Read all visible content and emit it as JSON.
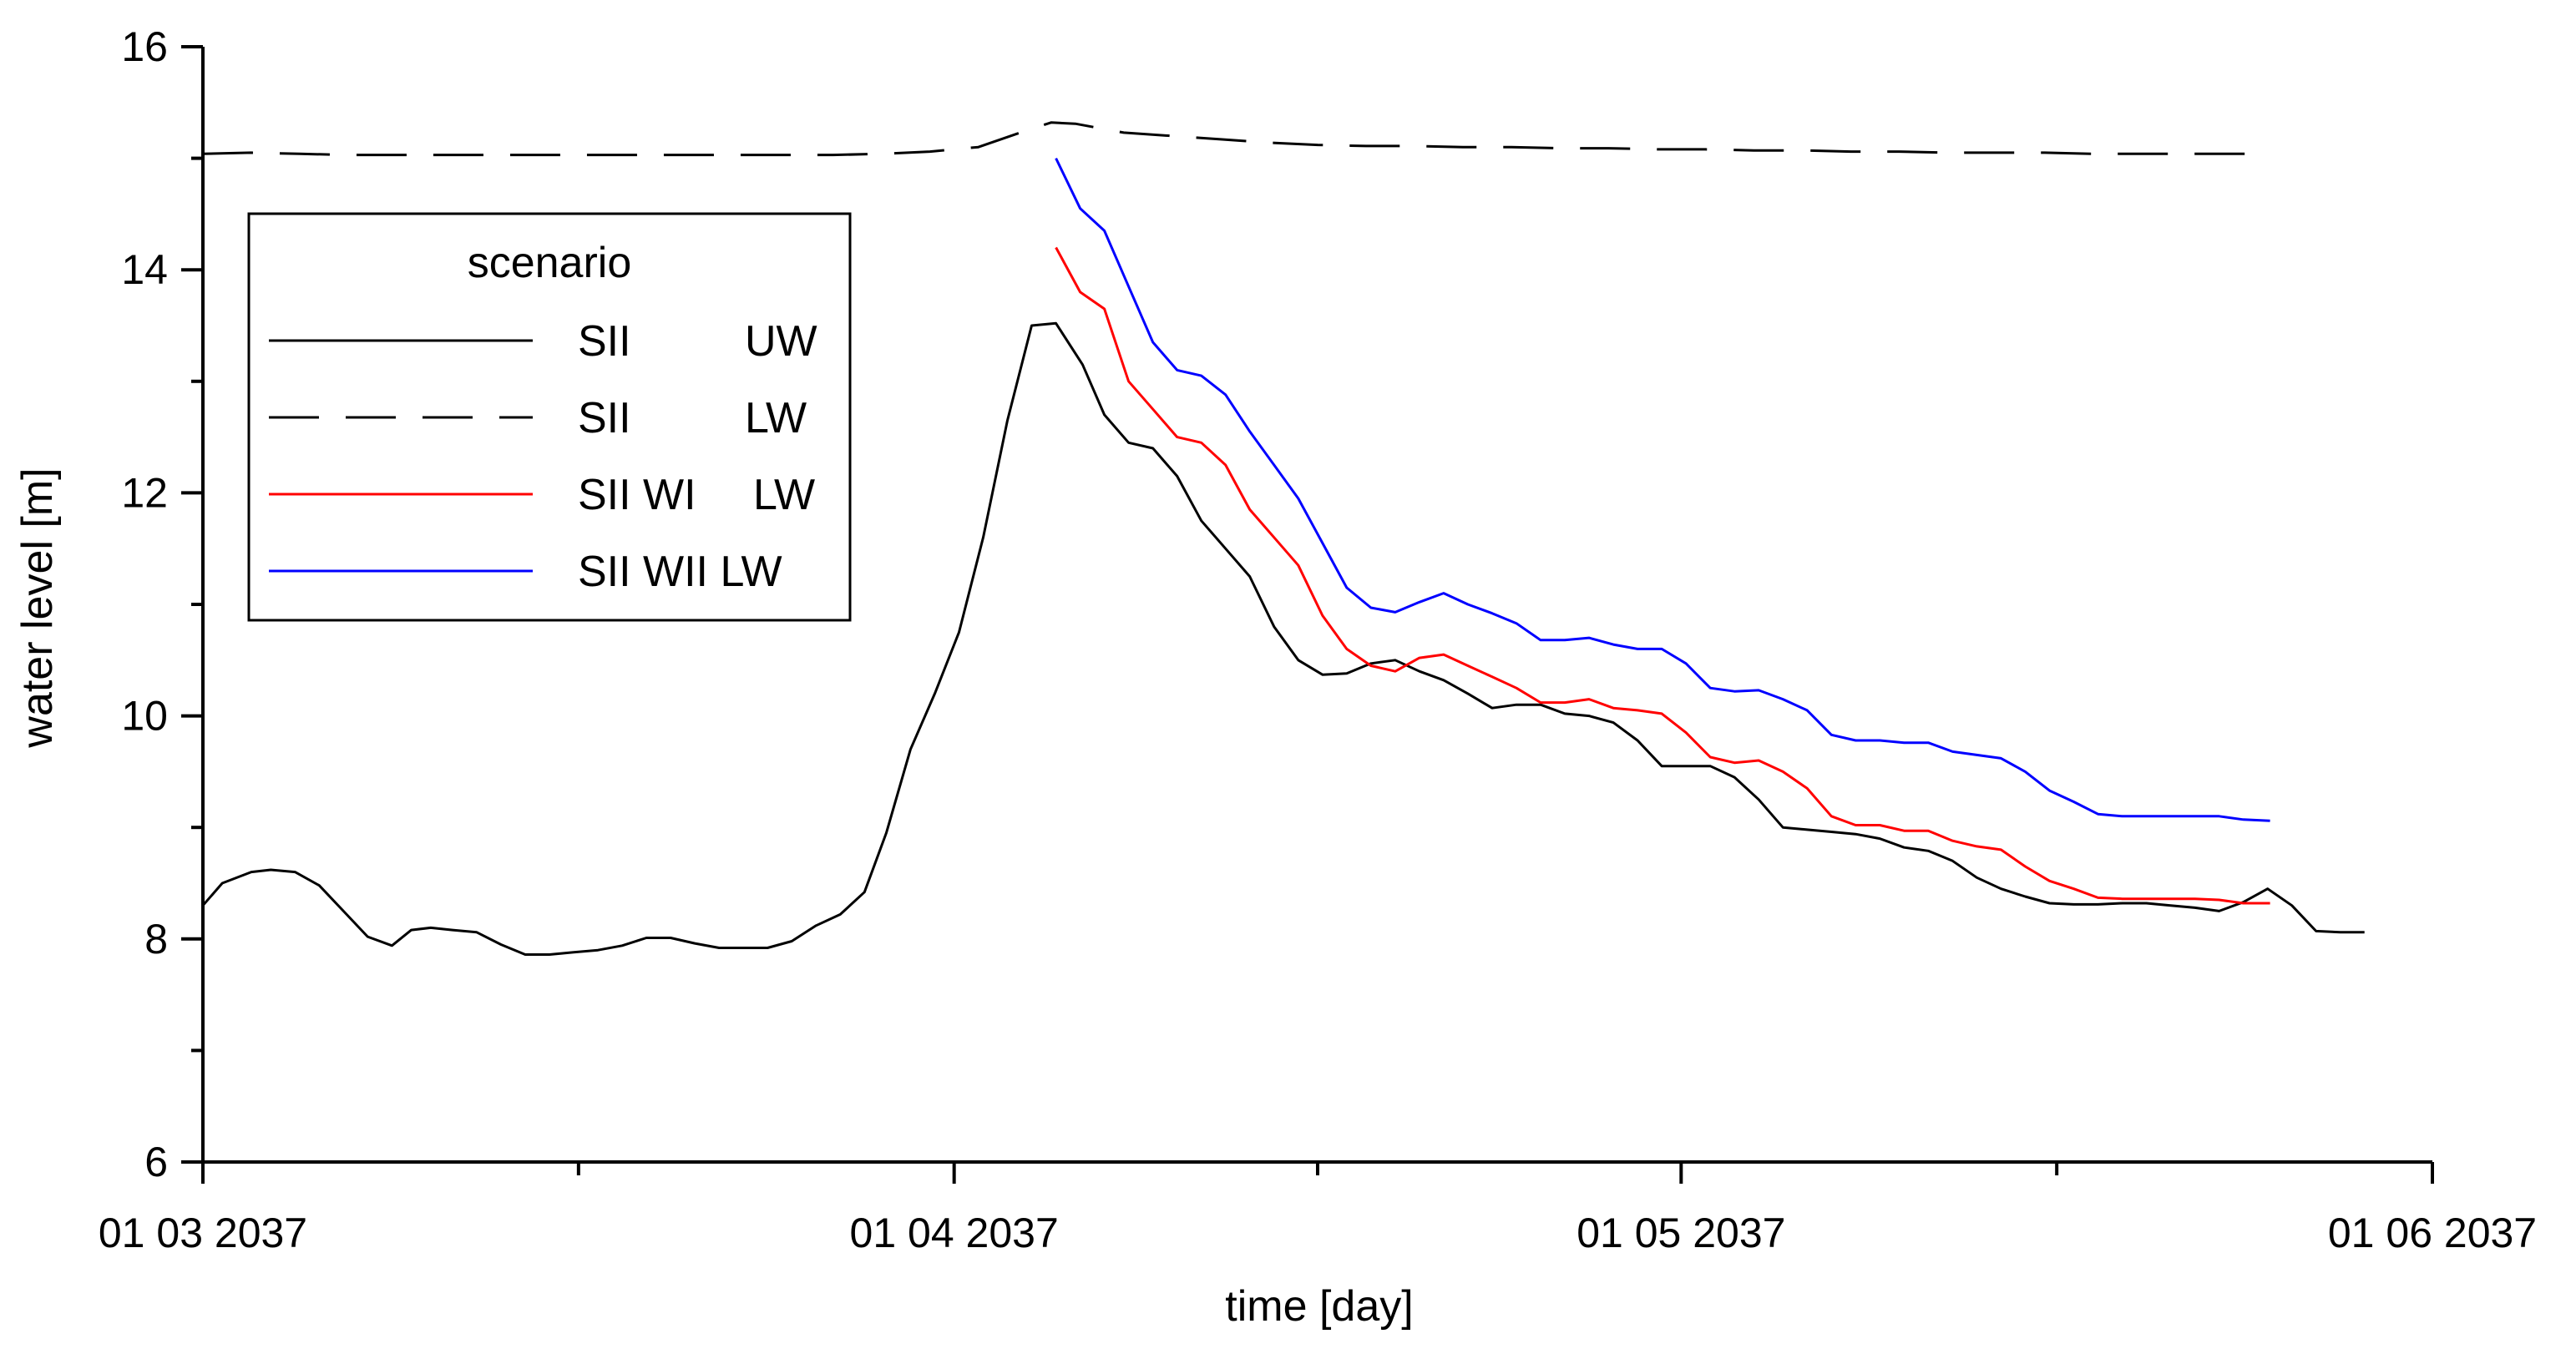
{
  "chart_data": {
    "type": "line",
    "title": "",
    "xlabel": "time [day]",
    "ylabel": "water level [m]",
    "xlim": [
      0,
      92
    ],
    "ylim": [
      6,
      16
    ],
    "y_ticks": [
      6,
      8,
      10,
      12,
      14,
      16
    ],
    "x_ticks": [
      {
        "day": 0,
        "label": "01 03 2037"
      },
      {
        "day": 31,
        "label": "01 04 2037"
      },
      {
        "day": 61,
        "label": "01 05 2037"
      },
      {
        "day": 92,
        "label": "01 06 2037"
      }
    ],
    "x_minor_ticks": [
      15.5,
      46,
      76.5
    ],
    "y_minor_ticks": [
      7,
      9,
      11,
      13,
      15
    ],
    "legend": {
      "title": "scenario",
      "position": "upper-left",
      "entries": [
        {
          "series": 0,
          "name": "SII",
          "tag": "UW"
        },
        {
          "series": 1,
          "name": "SII",
          "tag": "LW"
        },
        {
          "series": 2,
          "name": "SII WI",
          "tag": "LW"
        },
        {
          "series": 3,
          "name": "SII WII LW",
          "tag": ""
        }
      ]
    },
    "series": [
      {
        "name": "SII UW",
        "color": "#000000",
        "dash": "solid",
        "x": [
          0,
          0.8,
          2,
          2.8,
          3.8,
          4.8,
          5.8,
          6.8,
          7.8,
          8.6,
          9.4,
          10.3,
          11.3,
          12.3,
          13.3,
          14.3,
          15.3,
          16.3,
          17.3,
          18.3,
          19.3,
          20.3,
          21.3,
          22.3,
          23.3,
          24.3,
          25.3,
          26.3,
          27.3,
          28.2,
          29.2,
          30.2,
          31.2,
          32.2,
          33.2,
          34.2,
          35.2,
          36.3,
          37.2,
          38.2,
          39.2,
          40.2,
          41.2,
          42.2,
          43.2,
          44.2,
          45.2,
          46.2,
          47.2,
          48.2,
          49.2,
          50.2,
          51.2,
          52.2,
          53.2,
          54.2,
          55.2,
          56.2,
          57.2,
          58.2,
          59.2,
          60.2,
          61.2,
          62.2,
          63.2,
          64.2,
          65.2,
          66.2,
          67.2,
          68.2,
          69.2,
          70.2,
          71.2,
          72.2,
          73.2,
          74.2,
          75.2,
          76.2,
          77.2,
          78.2,
          79.2,
          80.2,
          81.2,
          82.2,
          83.2,
          84.2,
          85.2,
          86.2,
          87.2,
          88.2,
          89.2
        ],
        "values": [
          8.3,
          8.5,
          8.6,
          8.62,
          8.6,
          8.48,
          8.25,
          8.02,
          7.94,
          8.08,
          8.1,
          8.08,
          8.06,
          7.95,
          7.86,
          7.86,
          7.88,
          7.9,
          7.94,
          8.01,
          8.01,
          7.96,
          7.92,
          7.92,
          7.92,
          7.98,
          8.12,
          8.22,
          8.42,
          8.95,
          9.7,
          10.2,
          10.75,
          11.6,
          12.65,
          13.5,
          13.52,
          13.15,
          12.7,
          12.45,
          12.4,
          12.15,
          11.75,
          11.5,
          11.25,
          10.8,
          10.5,
          10.37,
          10.38,
          10.47,
          10.5,
          10.4,
          10.32,
          10.2,
          10.07,
          10.1,
          10.1,
          10.02,
          10.0,
          9.94,
          9.78,
          9.55,
          9.55,
          9.55,
          9.45,
          9.25,
          9.0,
          8.98,
          8.96,
          8.94,
          8.9,
          8.82,
          8.79,
          8.7,
          8.55,
          8.45,
          8.38,
          8.32,
          8.31,
          8.31,
          8.32,
          8.32,
          8.3,
          8.28,
          8.25,
          8.33,
          8.45,
          8.3,
          8.07,
          8.06,
          8.06
        ]
      },
      {
        "name": "SII LW",
        "color": "#000000",
        "dash": "dashed",
        "x": [
          0,
          2,
          4,
          6,
          8,
          10,
          12,
          14,
          16,
          18,
          20,
          22,
          24,
          26,
          28,
          30,
          32,
          34,
          35,
          36,
          38,
          40,
          42,
          44,
          46,
          48,
          50,
          52,
          54,
          56,
          58,
          60,
          62,
          64,
          66,
          68,
          70,
          72,
          74,
          76,
          78,
          80,
          82,
          84,
          85.3
        ],
        "values": [
          15.04,
          15.05,
          15.04,
          15.03,
          15.03,
          15.03,
          15.03,
          15.03,
          15.03,
          15.03,
          15.03,
          15.03,
          15.03,
          15.03,
          15.04,
          15.06,
          15.1,
          15.25,
          15.32,
          15.31,
          15.23,
          15.2,
          15.17,
          15.14,
          15.12,
          15.11,
          15.11,
          15.1,
          15.1,
          15.09,
          15.09,
          15.08,
          15.08,
          15.07,
          15.07,
          15.06,
          15.06,
          15.05,
          15.05,
          15.05,
          15.04,
          15.04,
          15.04,
          15.04,
          15.04
        ]
      },
      {
        "name": "SII WI LW",
        "color": "#ff0000",
        "dash": "solid",
        "x": [
          35.2,
          36.2,
          37.2,
          38.2,
          39.2,
          40.2,
          41.2,
          42.2,
          43.2,
          44.2,
          45.2,
          46.2,
          47.2,
          48.2,
          49.2,
          50.2,
          51.2,
          52.2,
          53.2,
          54.2,
          55.2,
          56.2,
          57.2,
          58.2,
          59.2,
          60.2,
          61.2,
          62.2,
          63.2,
          64.2,
          65.2,
          66.2,
          67.2,
          68.2,
          69.2,
          70.2,
          71.2,
          72.2,
          73.2,
          74.2,
          75.2,
          76.2,
          77.2,
          78.2,
          79.2,
          80.2,
          81.2,
          82.2,
          83.2,
          84.2,
          85.3
        ],
        "values": [
          14.2,
          13.8,
          13.65,
          13.0,
          12.75,
          12.5,
          12.45,
          12.25,
          11.85,
          11.6,
          11.35,
          10.9,
          10.6,
          10.45,
          10.4,
          10.52,
          10.55,
          10.45,
          10.35,
          10.25,
          10.12,
          10.12,
          10.15,
          10.07,
          10.05,
          10.02,
          9.85,
          9.63,
          9.58,
          9.6,
          9.5,
          9.35,
          9.1,
          9.02,
          9.02,
          8.97,
          8.97,
          8.88,
          8.83,
          8.8,
          8.65,
          8.52,
          8.45,
          8.37,
          8.36,
          8.36,
          8.36,
          8.36,
          8.35,
          8.32,
          8.32
        ]
      },
      {
        "name": "SII WII LW",
        "color": "#0000ff",
        "dash": "solid",
        "x": [
          35.2,
          36.2,
          37.2,
          38.2,
          39.2,
          40.2,
          41.2,
          42.2,
          43.2,
          44.2,
          45.2,
          46.2,
          47.2,
          48.2,
          49.2,
          50.2,
          51.2,
          52.2,
          53.2,
          54.2,
          55.2,
          56.2,
          57.2,
          58.2,
          59.2,
          60.2,
          61.2,
          62.2,
          63.2,
          64.2,
          65.2,
          66.2,
          67.2,
          68.2,
          69.2,
          70.2,
          71.2,
          72.2,
          73.2,
          74.2,
          75.2,
          76.2,
          77.2,
          78.2,
          79.2,
          80.2,
          81.2,
          82.2,
          83.2,
          84.2,
          85.3
        ],
        "values": [
          15.0,
          14.55,
          14.35,
          13.85,
          13.35,
          13.1,
          13.05,
          12.88,
          12.55,
          12.25,
          11.95,
          11.55,
          11.15,
          10.97,
          10.93,
          11.02,
          11.1,
          11.0,
          10.92,
          10.83,
          10.68,
          10.68,
          10.7,
          10.64,
          10.6,
          10.6,
          10.47,
          10.25,
          10.22,
          10.23,
          10.15,
          10.05,
          9.83,
          9.78,
          9.78,
          9.76,
          9.76,
          9.68,
          9.65,
          9.62,
          9.5,
          9.33,
          9.23,
          9.12,
          9.1,
          9.1,
          9.1,
          9.1,
          9.1,
          9.07,
          9.06
        ]
      }
    ]
  }
}
